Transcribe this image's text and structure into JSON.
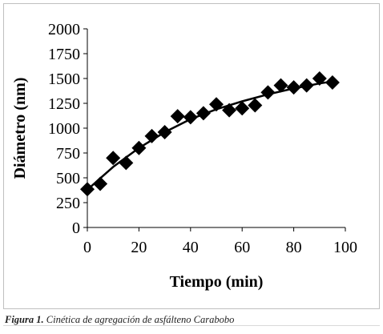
{
  "chart_data": {
    "type": "scatter",
    "title": "",
    "xlabel": "Tiempo (min)",
    "ylabel": "Diámetro (nm)",
    "xlim": [
      0,
      100
    ],
    "ylim": [
      0,
      2000
    ],
    "xticks": [
      0,
      20,
      40,
      60,
      80,
      100
    ],
    "yticks": [
      0,
      250,
      500,
      750,
      1000,
      1250,
      1500,
      1750,
      2000
    ],
    "grid": false,
    "legend": "none",
    "marker": "diamond",
    "marker_color": "#000000",
    "series": [
      {
        "x": [
          0,
          5,
          10,
          15,
          20,
          25,
          30,
          35,
          40,
          45,
          50,
          55,
          60,
          65,
          70,
          75,
          80,
          85,
          90,
          95
        ],
        "y": [
          385,
          440,
          700,
          650,
          800,
          920,
          960,
          1120,
          1110,
          1150,
          1240,
          1180,
          1200,
          1230,
          1360,
          1430,
          1410,
          1430,
          1500,
          1460
        ]
      }
    ],
    "trendline": {
      "x": [
        0,
        10,
        20,
        30,
        40,
        50,
        60,
        70,
        80,
        90,
        95
      ],
      "y": [
        380,
        610,
        800,
        960,
        1090,
        1190,
        1270,
        1340,
        1400,
        1450,
        1470
      ]
    }
  },
  "caption": {
    "label": "Figura 1.",
    "text": " Cinética de agregación de asfálteno Carabobo"
  }
}
